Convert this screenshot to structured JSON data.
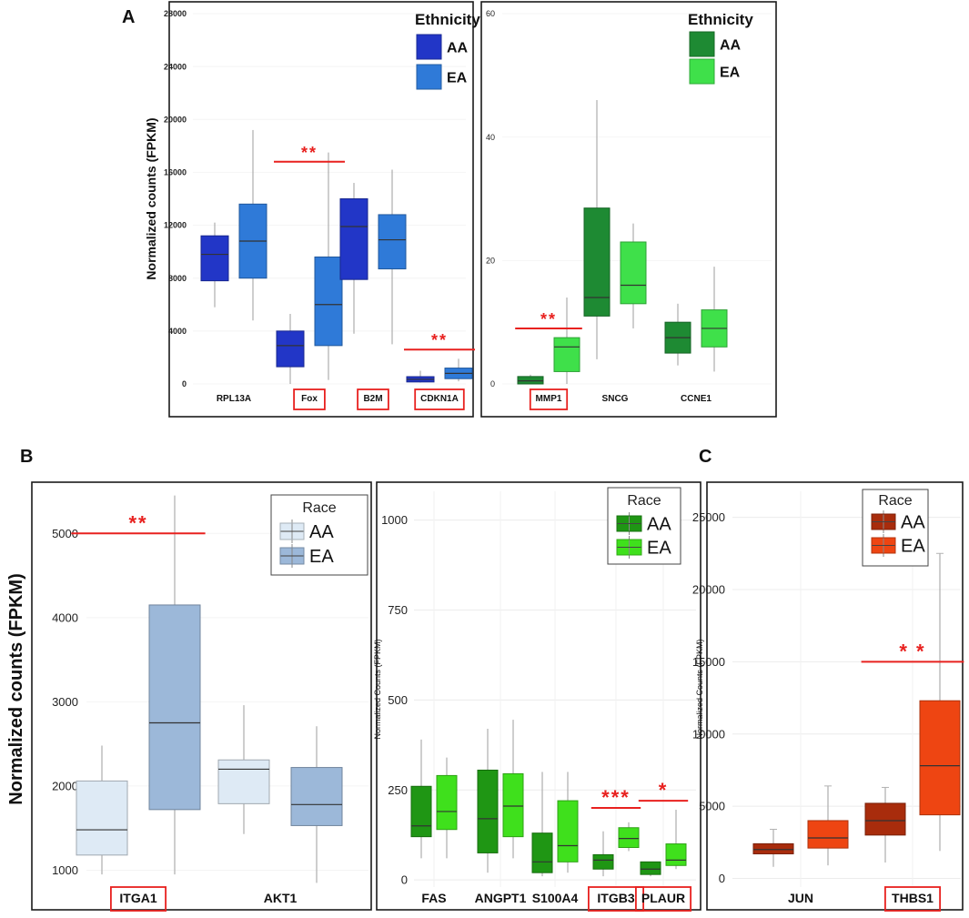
{
  "panel_labels": [
    "A",
    "B",
    "C"
  ],
  "significance_color": "#e8211f",
  "chart_data": [
    {
      "id": "A1",
      "type": "box",
      "ylabel": "Normalized counts (FPKM)",
      "ylim": [
        0,
        28000
      ],
      "yticks": [
        0,
        4000,
        8000,
        12000,
        16000,
        20000,
        24000,
        28000
      ],
      "legend": {
        "title": "Ethnicity",
        "items": [
          {
            "label": "AA",
            "color": "#2236c7"
          },
          {
            "label": "EA",
            "color": "#2f7ad8"
          }
        ]
      },
      "categories": [
        "RPL13A",
        "Fox",
        "B2M",
        "CDKN1A"
      ],
      "highlighted": [
        "Fox",
        "B2M",
        "CDKN1A"
      ],
      "boxes": [
        {
          "category": "RPL13A",
          "group": "AA",
          "min": 5800,
          "q1": 7800,
          "median": 9800,
          "q3": 11200,
          "max": 12200
        },
        {
          "category": "RPL13A",
          "group": "EA",
          "min": 4800,
          "q1": 8000,
          "median": 10800,
          "q3": 13600,
          "max": 19200
        },
        {
          "category": "Fox",
          "group": "AA",
          "min": 0,
          "q1": 1300,
          "median": 2900,
          "q3": 4000,
          "max": 5300
        },
        {
          "category": "Fox",
          "group": "EA",
          "min": 300,
          "q1": 2900,
          "median": 6000,
          "q3": 9600,
          "max": 17500
        },
        {
          "category": "B2M",
          "group": "AA",
          "min": 3800,
          "q1": 7900,
          "median": 11900,
          "q3": 14000,
          "max": 15200
        },
        {
          "category": "B2M",
          "group": "EA",
          "min": 3000,
          "q1": 8700,
          "median": 10900,
          "q3": 12800,
          "max": 16200
        },
        {
          "category": "CDKN1A",
          "group": "AA",
          "min": 100,
          "q1": 150,
          "median": 350,
          "q3": 550,
          "max": 1000
        },
        {
          "category": "CDKN1A",
          "group": "EA",
          "min": 200,
          "q1": 400,
          "median": 800,
          "q3": 1200,
          "max": 1900
        }
      ],
      "significance": [
        {
          "category": "Fox",
          "label": "**",
          "y": 16800
        },
        {
          "category": "CDKN1A",
          "label": "**",
          "y": 2600
        }
      ]
    },
    {
      "id": "A2",
      "type": "box",
      "ylabel": "",
      "ylim": [
        0,
        60
      ],
      "yticks": [
        0,
        20,
        40,
        60
      ],
      "legend": {
        "title": "Ethnicity",
        "items": [
          {
            "label": "AA",
            "color": "#1e8a33"
          },
          {
            "label": "EA",
            "color": "#3fe04a"
          }
        ]
      },
      "categories": [
        "MMP1",
        "SNCG",
        "CCNE1"
      ],
      "highlighted": [
        "MMP1"
      ],
      "boxes": [
        {
          "category": "MMP1",
          "group": "AA",
          "min": 0,
          "q1": 0,
          "median": 0.5,
          "q3": 1.2,
          "max": 1.5
        },
        {
          "category": "MMP1",
          "group": "EA",
          "min": 0,
          "q1": 2,
          "median": 6,
          "q3": 7.5,
          "max": 14
        },
        {
          "category": "SNCG",
          "group": "AA",
          "min": 4,
          "q1": 11,
          "median": 14,
          "q3": 28.5,
          "max": 46
        },
        {
          "category": "SNCG",
          "group": "EA",
          "min": 9,
          "q1": 13,
          "median": 16,
          "q3": 23,
          "max": 26
        },
        {
          "category": "CCNE1",
          "group": "AA",
          "min": 3,
          "q1": 5,
          "median": 7.5,
          "q3": 10,
          "max": 13
        },
        {
          "category": "CCNE1",
          "group": "EA",
          "min": 2,
          "q1": 6,
          "median": 9,
          "q3": 12,
          "max": 19
        }
      ],
      "significance": [
        {
          "category": "MMP1",
          "label": "**",
          "y": 9
        }
      ]
    },
    {
      "id": "B1",
      "type": "box",
      "ylabel": "Normalized counts (FPKM)",
      "ylim": [
        800,
        5500
      ],
      "yticks": [
        1000,
        2000,
        3000,
        4000,
        5000
      ],
      "legend": {
        "title": "Race",
        "items": [
          {
            "label": "AA",
            "color": "#deeaf5"
          },
          {
            "label": "EA",
            "color": "#9cb8d9"
          }
        ]
      },
      "categories": [
        "ITGA1",
        "AKT1"
      ],
      "highlighted": [
        "ITGA1"
      ],
      "boxes": [
        {
          "category": "ITGA1",
          "group": "AA",
          "min": 950,
          "q1": 1180,
          "median": 1480,
          "q3": 2060,
          "max": 2480
        },
        {
          "category": "ITGA1",
          "group": "EA",
          "min": 950,
          "q1": 1720,
          "median": 2750,
          "q3": 4150,
          "max": 5450
        },
        {
          "category": "AKT1",
          "group": "AA",
          "min": 1430,
          "q1": 1790,
          "median": 2200,
          "q3": 2310,
          "max": 2960
        },
        {
          "category": "AKT1",
          "group": "EA",
          "min": 850,
          "q1": 1530,
          "median": 1780,
          "q3": 2220,
          "max": 2710
        }
      ],
      "significance": [
        {
          "category": "ITGA1",
          "label": "**",
          "y": 5000
        }
      ]
    },
    {
      "id": "B2",
      "type": "box",
      "ylabel": "Normalized Counts (FPKM)",
      "ylim": [
        -20,
        1080
      ],
      "yticks": [
        0,
        250,
        500,
        750,
        1000
      ],
      "legend": {
        "title": "Race",
        "items": [
          {
            "label": "AA",
            "color": "#1f9614"
          },
          {
            "label": "EA",
            "color": "#3fe01c"
          }
        ]
      },
      "categories": [
        "FAS",
        "ANGPT1",
        "S100A4",
        "ITGB3",
        "PLAUR"
      ],
      "highlighted": [
        "ITGB3",
        "PLAUR"
      ],
      "boxes": [
        {
          "category": "FAS",
          "group": "AA",
          "min": 60,
          "q1": 120,
          "median": 150,
          "q3": 260,
          "max": 390
        },
        {
          "category": "FAS",
          "group": "EA",
          "min": 60,
          "q1": 140,
          "median": 190,
          "q3": 290,
          "max": 340
        },
        {
          "category": "ANGPT1",
          "group": "AA",
          "min": 20,
          "q1": 75,
          "median": 170,
          "q3": 305,
          "max": 420
        },
        {
          "category": "ANGPT1",
          "group": "EA",
          "min": 60,
          "q1": 120,
          "median": 205,
          "q3": 295,
          "max": 445
        },
        {
          "category": "S100A4",
          "group": "AA",
          "min": 10,
          "q1": 20,
          "median": 50,
          "q3": 130,
          "max": 300
        },
        {
          "category": "S100A4",
          "group": "EA",
          "min": 20,
          "q1": 50,
          "median": 95,
          "q3": 220,
          "max": 300
        },
        {
          "category": "ITGB3",
          "group": "AA",
          "min": 10,
          "q1": 30,
          "median": 55,
          "q3": 70,
          "max": 135
        },
        {
          "category": "ITGB3",
          "group": "EA",
          "min": 80,
          "q1": 90,
          "median": 115,
          "q3": 145,
          "max": 160
        },
        {
          "category": "PLAUR",
          "group": "AA",
          "min": 10,
          "q1": 15,
          "median": 30,
          "q3": 50,
          "max": 50
        },
        {
          "category": "PLAUR",
          "group": "EA",
          "min": 30,
          "q1": 40,
          "median": 55,
          "q3": 100,
          "max": 195
        }
      ],
      "significance": [
        {
          "category": "ITGB3",
          "label": "***",
          "y": 200
        },
        {
          "category": "PLAUR",
          "label": "*",
          "y": 220
        }
      ]
    },
    {
      "id": "C",
      "type": "box",
      "ylabel": "Normalized Counts (FPKM)",
      "ylim": [
        -600,
        26800
      ],
      "yticks": [
        0,
        5000,
        10000,
        15000,
        20000,
        25000
      ],
      "legend": {
        "title": "Race",
        "items": [
          {
            "label": "AA",
            "color": "#a82c0c"
          },
          {
            "label": "EA",
            "color": "#ee4512"
          }
        ]
      },
      "categories": [
        "JUN",
        "THBS1"
      ],
      "highlighted": [
        "THBS1"
      ],
      "boxes": [
        {
          "category": "JUN",
          "group": "AA",
          "min": 800,
          "q1": 1700,
          "median": 2000,
          "q3": 2400,
          "max": 3400
        },
        {
          "category": "JUN",
          "group": "EA",
          "min": 900,
          "q1": 2100,
          "median": 2800,
          "q3": 4000,
          "max": 6400
        },
        {
          "category": "THBS1",
          "group": "AA",
          "min": 1100,
          "q1": 3000,
          "median": 4000,
          "q3": 5200,
          "max": 6300
        },
        {
          "category": "THBS1",
          "group": "EA",
          "min": 1900,
          "q1": 4400,
          "median": 7800,
          "q3": 12300,
          "max": 22500
        }
      ],
      "significance": [
        {
          "category": "THBS1",
          "label": "* *",
          "y": 15000
        }
      ]
    }
  ]
}
